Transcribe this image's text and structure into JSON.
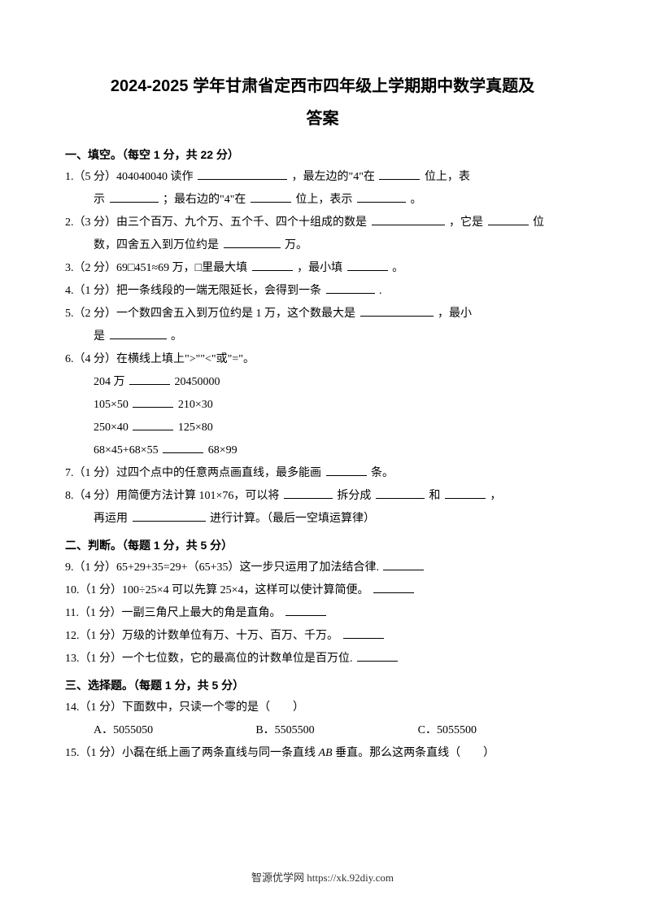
{
  "title_main": "2024-2025 学年甘肃省定西市四年级上学期期中数学真题及",
  "title_sub": "答案",
  "section1": {
    "header": "一、填空。（每空 1 分，共 22 分）",
    "q1_a": "1.（5 分）404040040 读作",
    "q1_b": "，最左边的\"4\"在",
    "q1_c": "位上，表",
    "q1_d": "示",
    "q1_e": "；最右边的\"4\"在",
    "q1_f": "位上，表示",
    "q1_g": "。",
    "q2_a": "2.（3 分）由三个百万、九个万、五个千、四个十组成的数是",
    "q2_b": "，它是",
    "q2_c": "位",
    "q2_d": "数，四舍五入到万位约是",
    "q2_e": "万。",
    "q3_a": "3.（2 分）69□451≈69 万，□里最大填",
    "q3_b": "，最小填",
    "q3_c": "。",
    "q4_a": "4.（1 分）把一条线段的一端无限延长，会得到一条",
    "q4_b": ".",
    "q5_a": "5.（2 分）一个数四舍五入到万位约是 1 万，这个数最大是",
    "q5_b": "，最小",
    "q5_c": "是",
    "q5_d": "。",
    "q6": "6.（4 分）在横线上填上\">\"\"<\"或\"=\"。",
    "q6_r1a": "204 万",
    "q6_r1b": "20450000",
    "q6_r2a": "105×50",
    "q6_r2b": "210×30",
    "q6_r3a": "250×40",
    "q6_r3b": "125×80",
    "q6_r4a": "68×45+68×55",
    "q6_r4b": "68×99",
    "q7_a": "7.（1 分）过四个点中的任意两点画直线，最多能画",
    "q7_b": "条。",
    "q8_a": "8.（4 分）用简便方法计算 101×76，可以将",
    "q8_b": "拆分成",
    "q8_c": "和",
    "q8_d": "，",
    "q8_e": "再运用",
    "q8_f": "进行计算。（最后一空填运算律）"
  },
  "section2": {
    "header": "二、判断。（每题 1 分，共 5 分）",
    "q9": "9.（1 分）65+29+35=29+（65+35）这一步只运用了加法结合律.",
    "q10": "10.（1 分）100÷25×4 可以先算 25×4，这样可以使计算简便。",
    "q11": "11.（1 分）一副三角尺上最大的角是直角。",
    "q12": "12.（1 分）万级的计数单位有万、十万、百万、千万。",
    "q13": "13.（1 分）一个七位数，它的最高位的计数单位是百万位."
  },
  "section3": {
    "header": "三、选择题。（每题 1 分，共 5 分）",
    "q14": "14.（1 分）下面数中，只读一个零的是（　　）",
    "q14_optA": "A．5055050",
    "q14_optB": "B．5505500",
    "q14_optC": "C．5055500",
    "q15_a": "15.（1 分）小磊在纸上画了两条直线与同一条直线 ",
    "q15_ab": "AB",
    "q15_b": " 垂直。那么这两条直线（　　）"
  },
  "footer": "智源优学网 https://xk.92diy.com"
}
